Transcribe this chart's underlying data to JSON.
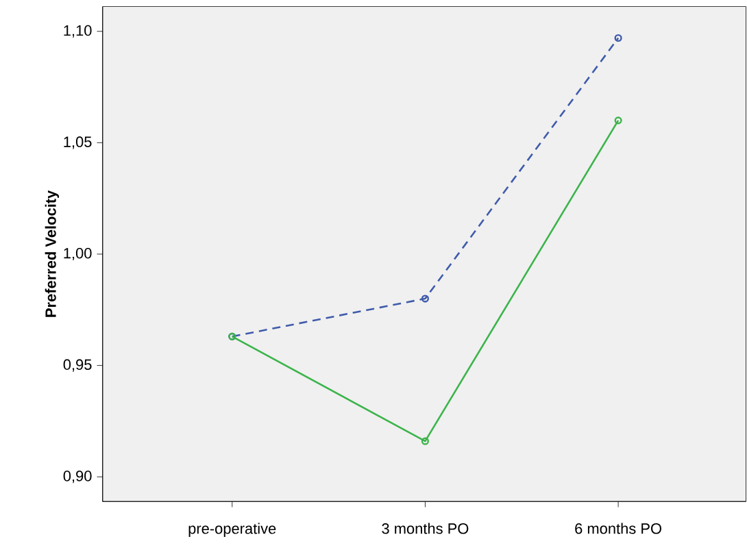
{
  "chart_data": {
    "type": "line",
    "ylabel": "Preferred Velocity",
    "categories": [
      "pre-operative",
      "3 months PO",
      "6 months PO"
    ],
    "series": [
      {
        "color": "#3f5bab",
        "line_style": "dashed",
        "values": [
          0.963,
          0.98,
          1.097
        ]
      },
      {
        "color": "#3cb44b",
        "line_style": "solid",
        "values": [
          0.963,
          0.916,
          1.06
        ]
      }
    ],
    "ylim": [
      0.889,
      1.111
    ],
    "yticks": [
      {
        "value": 0.9,
        "label": "0,90"
      },
      {
        "value": 0.95,
        "label": "0,95"
      },
      {
        "value": 1.0,
        "label": "1,00"
      },
      {
        "value": 1.05,
        "label": "1,05"
      },
      {
        "value": 1.1,
        "label": "1,10"
      }
    ],
    "marker": "circle"
  }
}
